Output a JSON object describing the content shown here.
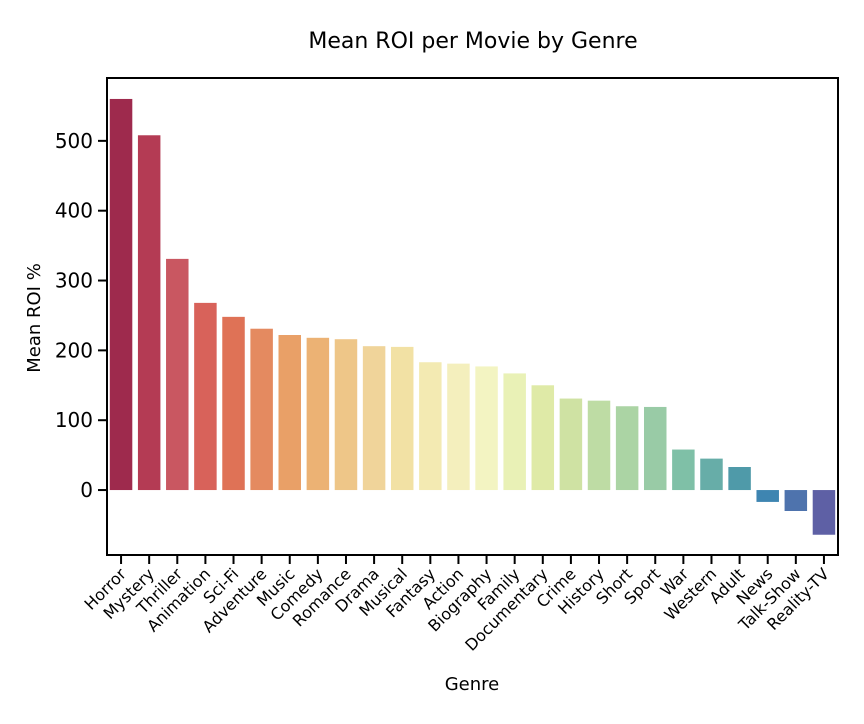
{
  "chart_data": {
    "type": "bar",
    "title": "Mean ROI per Movie by Genre",
    "xlabel": "Genre",
    "ylabel": "Mean ROI %",
    "categories": [
      "Horror",
      "Mystery",
      "Thriller",
      "Animation",
      "Sci-Fi",
      "Adventure",
      "Music",
      "Comedy",
      "Romance",
      "Drama",
      "Musical",
      "Fantasy",
      "Action",
      "Biography",
      "Family",
      "Documentary",
      "Crime",
      "History",
      "Short",
      "Sport",
      "War",
      "Western",
      "Adult",
      "News",
      "Talk-Show",
      "Reality-TV"
    ],
    "values": [
      560,
      508,
      331,
      268,
      248,
      231,
      222,
      218,
      216,
      206,
      205,
      183,
      181,
      177,
      167,
      150,
      131,
      128,
      120,
      119,
      58,
      45,
      33,
      -17,
      -30,
      -64
    ],
    "colors": [
      "#9e2a4d",
      "#b43b54",
      "#c95761",
      "#d8625a",
      "#df7256",
      "#e48a60",
      "#e9a067",
      "#ecb274",
      "#eec688",
      "#f0d49a",
      "#f2e1a4",
      "#f3eab2",
      "#f4efbd",
      "#f3f4c2",
      "#e9f1b6",
      "#dfeaa7",
      "#cfe2a3",
      "#bedca4",
      "#abd4a4",
      "#99cba6",
      "#7fc0a7",
      "#67ada8",
      "#4f9aa9",
      "#3e85b1",
      "#4e73ad",
      "#5e60a5"
    ],
    "yticks": [
      0,
      100,
      200,
      300,
      400,
      500
    ],
    "ylim": [
      -93,
      590
    ],
    "grid": false,
    "legend": "none"
  }
}
